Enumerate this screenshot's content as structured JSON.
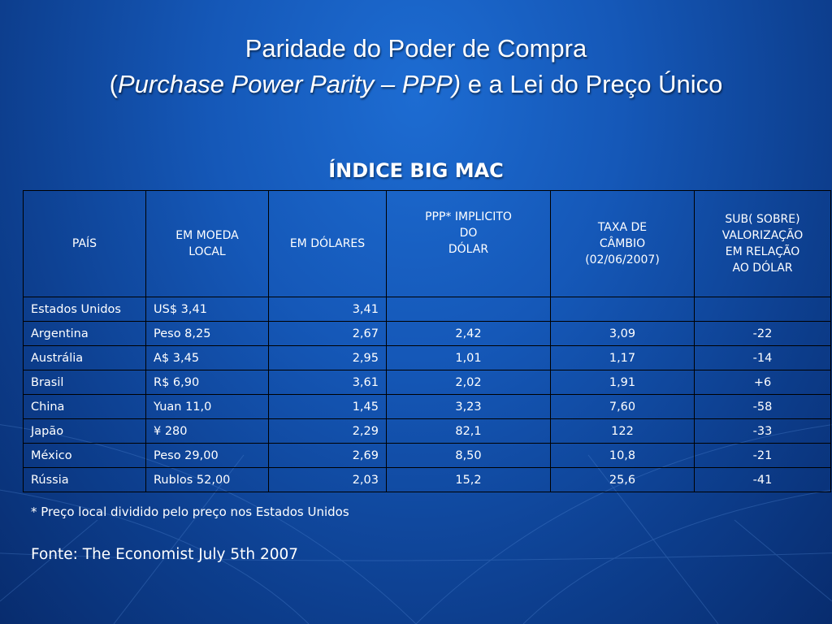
{
  "slide": {
    "title_line1": "Paridade do Poder de Compra",
    "title_open_paren": "(",
    "title_italic": "Purchase Power Parity – PPP)",
    "title_rest": " e a Lei do Preço Único",
    "subtitle": "ÍNDICE BIG MAC"
  },
  "table": {
    "headers": [
      "PAÍS",
      "EM MOEDA\n        LOCAL",
      "EM DÓLARES",
      "PPP* IMPLICITO\nDO\nDÓLAR",
      "TAXA DE\nCÂMBIO\n(02/06/2007)",
      "SUB( SOBRE)\nVALORIZAÇÃO\nEM RELAÇÃO\nAO DÓLAR"
    ],
    "rows": [
      [
        "Estados Unidos",
        "US$ 3,41",
        "3,41",
        "",
        "",
        ""
      ],
      [
        "Argentina",
        "Peso 8,25",
        "2,67",
        "2,42",
        "3,09",
        "-22"
      ],
      [
        "Austrália",
        "A$ 3,45",
        "2,95",
        "1,01",
        "1,17",
        "-14"
      ],
      [
        "Brasil",
        "R$ 6,90",
        "3,61",
        "2,02",
        "1,91",
        "+6"
      ],
      [
        "China",
        "Yuan 11,0",
        "1,45",
        "3,23",
        "7,60",
        "-58"
      ],
      [
        "Japão",
        "¥ 280",
        "2,29",
        "82,1",
        "122",
        "-33"
      ],
      [
        "México",
        "Peso 29,00",
        "2,69",
        "8,50",
        "10,8",
        "-21"
      ],
      [
        "Rússia",
        "Rublos 52,00",
        "2,03",
        "15,2",
        "25,6",
        "-41"
      ]
    ]
  },
  "footnote": "* Preço local dividido pelo preço nos Estados Unidos",
  "source": "Fonte: The Economist July 5th 2007",
  "colors": {
    "background": "#1558b8",
    "text": "#ffffff",
    "border": "#000000"
  }
}
